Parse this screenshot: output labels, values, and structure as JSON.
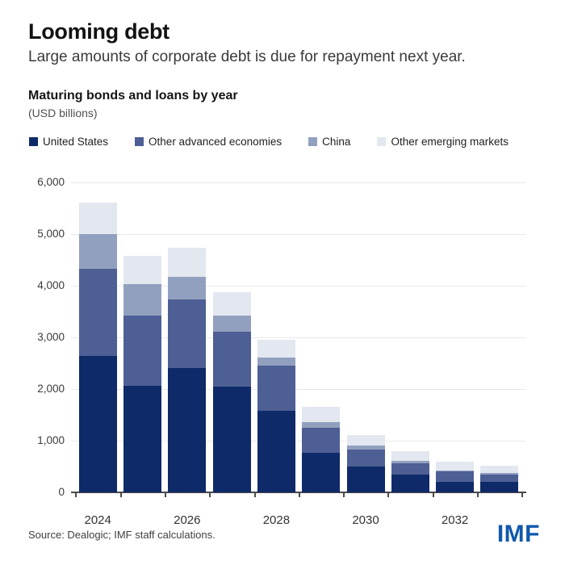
{
  "header": {
    "title": "Looming debt",
    "subtitle": "Large amounts of corporate debt is due for repayment next year."
  },
  "chart_header": {
    "title": "Maturing bonds and loans by year",
    "unit": "(USD billions)"
  },
  "chart_data": {
    "type": "bar",
    "stacked": true,
    "title": "Maturing bonds and loans by year",
    "unit": "USD billions",
    "categories": [
      "2024",
      "2025",
      "2026",
      "2027",
      "2028",
      "2029",
      "2030",
      "2031",
      "2032",
      "2033"
    ],
    "series": [
      {
        "name": "United States",
        "color": "#0f2a68",
        "values": [
          2640,
          2065,
          2410,
          2045,
          1575,
          760,
          505,
          340,
          210,
          200
        ]
      },
      {
        "name": "Other advanced economies",
        "color": "#4d5f94",
        "values": [
          1690,
          1360,
          1330,
          1065,
          875,
          490,
          330,
          220,
          195,
          150
        ]
      },
      {
        "name": "China",
        "color": "#92a0bf",
        "values": [
          670,
          610,
          425,
          310,
          155,
          105,
          75,
          55,
          25,
          25
        ]
      },
      {
        "name": "Other emerging markets",
        "color": "#e3e7f0",
        "values": [
          615,
          540,
          575,
          450,
          355,
          295,
          195,
          185,
          160,
          135
        ]
      }
    ],
    "totals": [
      5615,
      4575,
      4740,
      3870,
      2960,
      1650,
      1105,
      800,
      590,
      510
    ],
    "ylim": [
      0,
      6000
    ],
    "y_ticks": [
      0,
      1000,
      2000,
      3000,
      4000,
      5000,
      6000
    ],
    "x_tick_labels": [
      "2024",
      "2026",
      "2028",
      "2030",
      "2032"
    ],
    "grid": "horizontal",
    "legend_position": "top"
  },
  "footer": {
    "source": "Source: Dealogic; IMF staff calculations.",
    "logo": "IMF"
  }
}
